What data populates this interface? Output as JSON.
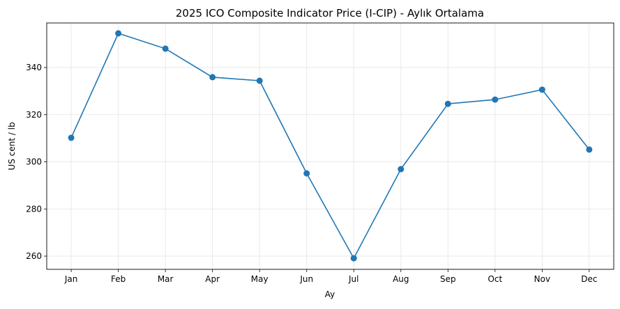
{
  "chart_data": {
    "type": "line",
    "title": "2025 ICO Composite Indicator Price (I-CIP) - Aylık Ortalama",
    "xlabel": "Ay",
    "ylabel": "US cent / lb",
    "categories": [
      "Jan",
      "Feb",
      "Mar",
      "Apr",
      "May",
      "Jun",
      "Jul",
      "Aug",
      "Sep",
      "Oct",
      "Nov",
      "Dec"
    ],
    "series": [
      {
        "name": "I-CIP",
        "color": "#1f77b4",
        "values": [
          310.2,
          354.5,
          348.0,
          335.9,
          334.4,
          295.1,
          259.1,
          296.9,
          324.6,
          326.4,
          330.6,
          305.2
        ]
      }
    ],
    "yticks": [
      260,
      280,
      300,
      320,
      340
    ],
    "ylim": [
      254.4,
      358.9
    ],
    "grid": true,
    "legend": "none"
  }
}
